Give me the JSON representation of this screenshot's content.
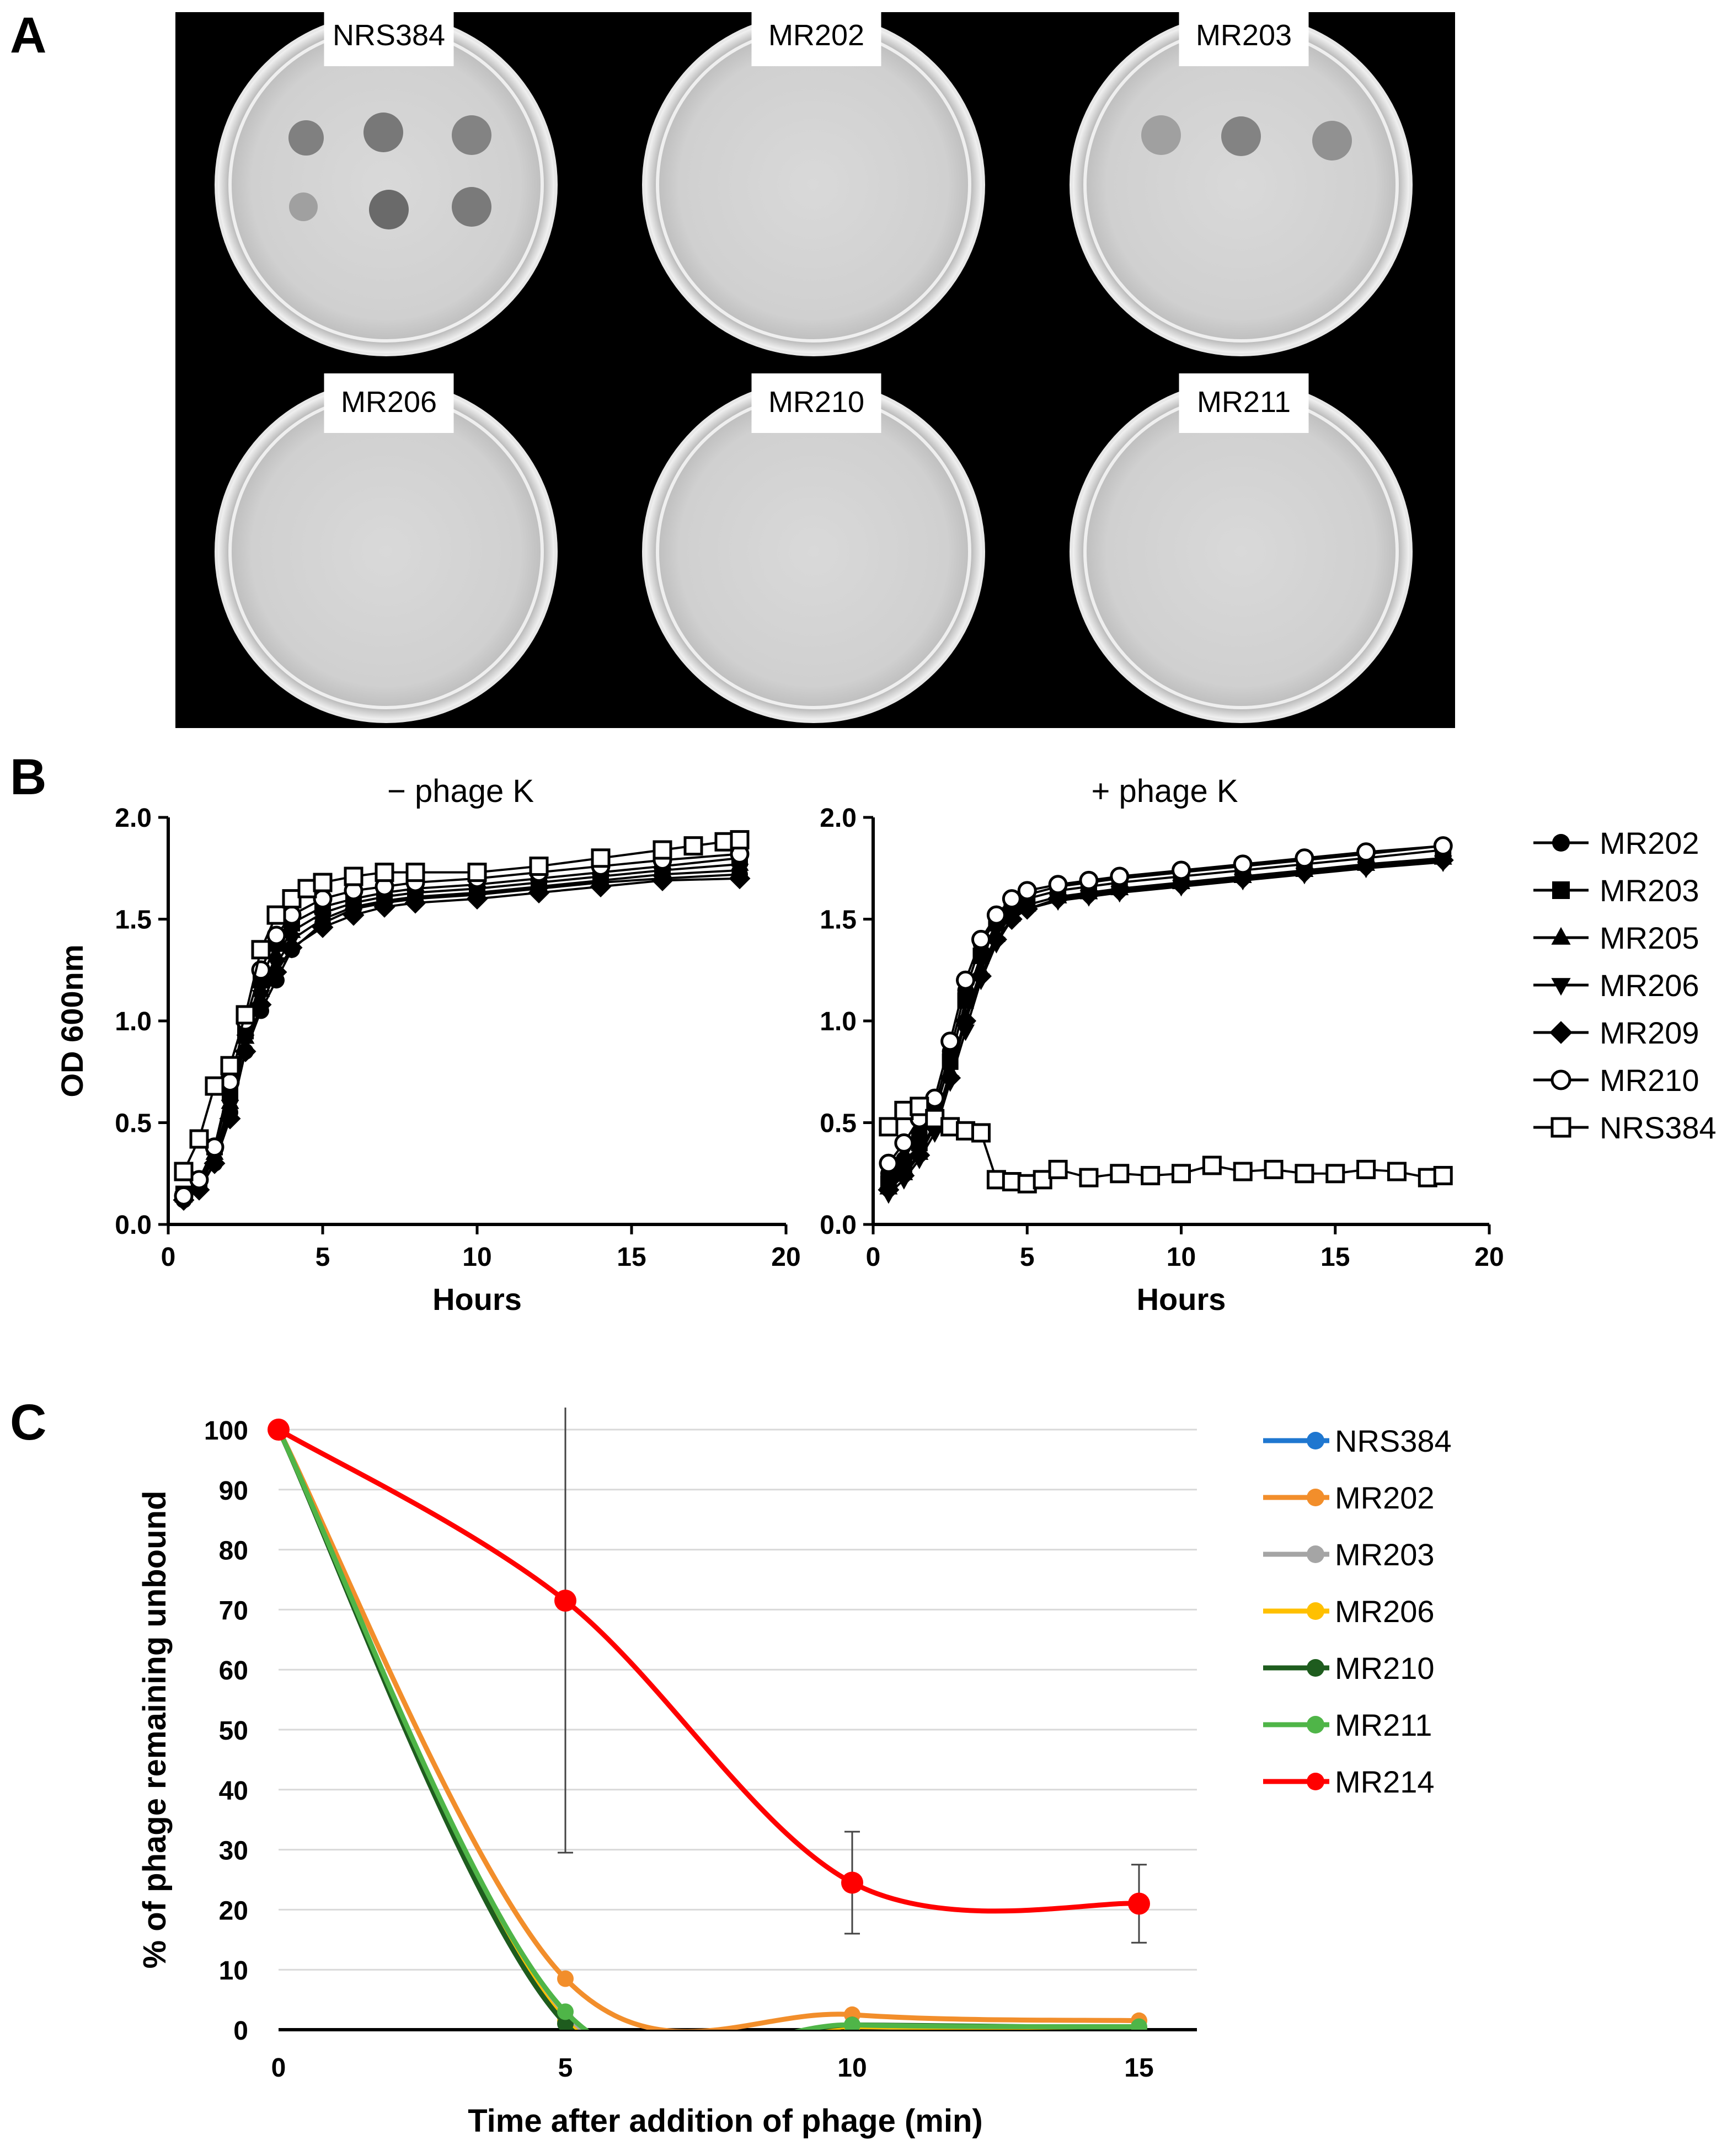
{
  "panel_letters": [
    "A",
    "B",
    "C"
  ],
  "plates": [
    {
      "label": "NRS384",
      "plaques": 6
    },
    {
      "label": "MR202",
      "plaques": 0
    },
    {
      "label": "MR203",
      "plaques": 3
    },
    {
      "label": "MR206",
      "plaques": 0
    },
    {
      "label": "MR210",
      "plaques": 0
    },
    {
      "label": "MR211",
      "plaques": 0
    }
  ],
  "chart_data": [
    {
      "type": "line",
      "panel": "B",
      "title": "− phage K",
      "xlabel": "Hours",
      "ylabel": "OD 600nm",
      "xlim": [
        0,
        20
      ],
      "ylim": [
        0,
        2.0
      ],
      "xticks": [
        "0",
        "5",
        "10",
        "15",
        "20"
      ],
      "yticks": [
        "0.0",
        "0.5",
        "1.0",
        "1.5",
        "2.0"
      ],
      "series": [
        {
          "name": "MR202",
          "marker": "circle",
          "x": [
            0.5,
            1,
            1.5,
            2,
            2.5,
            3,
            3.5,
            4,
            5,
            6,
            7,
            8,
            10,
            12,
            14,
            16,
            18.5
          ],
          "y": [
            0.12,
            0.18,
            0.3,
            0.55,
            0.85,
            1.05,
            1.2,
            1.35,
            1.48,
            1.55,
            1.58,
            1.6,
            1.62,
            1.65,
            1.68,
            1.7,
            1.72
          ]
        },
        {
          "name": "MR203",
          "marker": "square",
          "x": [
            0.5,
            1,
            1.5,
            2,
            2.5,
            3,
            3.5,
            4,
            5,
            6,
            7,
            8,
            10,
            12,
            14,
            16,
            18.5
          ],
          "y": [
            0.15,
            0.22,
            0.38,
            0.65,
            0.95,
            1.2,
            1.38,
            1.48,
            1.56,
            1.6,
            1.63,
            1.65,
            1.67,
            1.7,
            1.73,
            1.76,
            1.8
          ]
        },
        {
          "name": "MR205",
          "marker": "triangle",
          "x": [
            0.5,
            1,
            1.5,
            2,
            2.5,
            3,
            3.5,
            4,
            5,
            6,
            7,
            8,
            10,
            12,
            14,
            16,
            18.5
          ],
          "y": [
            0.14,
            0.2,
            0.35,
            0.6,
            0.92,
            1.15,
            1.32,
            1.44,
            1.53,
            1.58,
            1.61,
            1.63,
            1.65,
            1.68,
            1.71,
            1.74,
            1.77
          ]
        },
        {
          "name": "MR206",
          "marker": "triangle-down",
          "x": [
            0.5,
            1,
            1.5,
            2,
            2.5,
            3,
            3.5,
            4,
            5,
            6,
            7,
            8,
            10,
            12,
            14,
            16,
            18.5
          ],
          "y": [
            0.13,
            0.19,
            0.33,
            0.58,
            0.9,
            1.12,
            1.28,
            1.4,
            1.5,
            1.56,
            1.59,
            1.61,
            1.63,
            1.66,
            1.69,
            1.72,
            1.74
          ]
        },
        {
          "name": "MR209",
          "marker": "diamond",
          "x": [
            0.5,
            1,
            1.5,
            2,
            2.5,
            3,
            3.5,
            4,
            5,
            6,
            7,
            8,
            10,
            12,
            14,
            16,
            18.5
          ],
          "y": [
            0.12,
            0.17,
            0.3,
            0.52,
            0.85,
            1.08,
            1.24,
            1.36,
            1.46,
            1.52,
            1.56,
            1.58,
            1.6,
            1.63,
            1.66,
            1.69,
            1.7
          ]
        },
        {
          "name": "MR210",
          "marker": "circle-open",
          "x": [
            0.5,
            1,
            1.5,
            2,
            2.5,
            3,
            3.5,
            4,
            5,
            6,
            7,
            8,
            10,
            12,
            14,
            16,
            18.5
          ],
          "y": [
            0.14,
            0.22,
            0.38,
            0.7,
            1.0,
            1.25,
            1.42,
            1.52,
            1.6,
            1.64,
            1.66,
            1.68,
            1.7,
            1.73,
            1.76,
            1.79,
            1.82
          ]
        },
        {
          "name": "NRS384",
          "marker": "square-open",
          "x": [
            0.5,
            1,
            1.5,
            2,
            2.5,
            3,
            3.5,
            4,
            4.5,
            5,
            6,
            7,
            8,
            10,
            12,
            14,
            16,
            17,
            18,
            18.5
          ],
          "y": [
            0.26,
            0.42,
            0.68,
            0.78,
            1.03,
            1.35,
            1.52,
            1.6,
            1.65,
            1.68,
            1.71,
            1.73,
            1.73,
            1.73,
            1.76,
            1.8,
            1.84,
            1.86,
            1.88,
            1.89
          ]
        }
      ]
    },
    {
      "type": "line",
      "panel": "B",
      "title": "+ phage K",
      "xlabel": "Hours",
      "ylabel": "",
      "xlim": [
        0,
        20
      ],
      "ylim": [
        0,
        2.0
      ],
      "xticks": [
        "0",
        "5",
        "10",
        "15",
        "20"
      ],
      "yticks": [
        "0.0",
        "0.5",
        "1.0",
        "1.5",
        "2.0"
      ],
      "series": [
        {
          "name": "MR202",
          "marker": "circle",
          "x": [
            0.5,
            1,
            1.5,
            2,
            2.5,
            3,
            3.5,
            4,
            4.5,
            5,
            6,
            7,
            8,
            10,
            12,
            14,
            16,
            18.5
          ],
          "y": [
            0.25,
            0.32,
            0.45,
            0.58,
            0.85,
            1.15,
            1.38,
            1.5,
            1.58,
            1.62,
            1.66,
            1.68,
            1.7,
            1.73,
            1.76,
            1.79,
            1.82,
            1.86
          ]
        },
        {
          "name": "MR203",
          "marker": "square",
          "x": [
            0.5,
            1,
            1.5,
            2,
            2.5,
            3,
            3.5,
            4,
            4.5,
            5,
            6,
            7,
            8,
            10,
            12,
            14,
            16,
            18.5
          ],
          "y": [
            0.2,
            0.28,
            0.4,
            0.55,
            0.8,
            1.1,
            1.32,
            1.48,
            1.56,
            1.6,
            1.64,
            1.66,
            1.68,
            1.71,
            1.74,
            1.77,
            1.8,
            1.84
          ]
        },
        {
          "name": "MR205",
          "marker": "triangle",
          "x": [
            0.5,
            1,
            1.5,
            2,
            2.5,
            3,
            3.5,
            4,
            4.5,
            5,
            6,
            7,
            8,
            10,
            12,
            14,
            16,
            18.5
          ],
          "y": [
            0.18,
            0.25,
            0.35,
            0.5,
            0.75,
            1.02,
            1.25,
            1.42,
            1.52,
            1.57,
            1.61,
            1.63,
            1.65,
            1.68,
            1.71,
            1.74,
            1.77,
            1.8
          ]
        },
        {
          "name": "MR206",
          "marker": "triangle-down",
          "x": [
            0.5,
            1,
            1.5,
            2,
            2.5,
            3,
            3.5,
            4,
            4.5,
            5,
            6,
            7,
            8,
            10,
            12,
            14,
            16,
            18.5
          ],
          "y": [
            0.15,
            0.22,
            0.32,
            0.45,
            0.7,
            0.95,
            1.2,
            1.38,
            1.5,
            1.55,
            1.59,
            1.61,
            1.63,
            1.66,
            1.69,
            1.72,
            1.75,
            1.78
          ]
        },
        {
          "name": "MR209",
          "marker": "diamond",
          "x": [
            0.5,
            1,
            1.5,
            2,
            2.5,
            3,
            3.5,
            4,
            4.5,
            5,
            6,
            7,
            8,
            10,
            12,
            14,
            16,
            18.5
          ],
          "y": [
            0.17,
            0.24,
            0.34,
            0.48,
            0.72,
            1.0,
            1.22,
            1.4,
            1.5,
            1.55,
            1.6,
            1.62,
            1.64,
            1.67,
            1.7,
            1.73,
            1.76,
            1.79
          ]
        },
        {
          "name": "MR210",
          "marker": "circle-open",
          "x": [
            0.5,
            1,
            1.5,
            2,
            2.5,
            3,
            3.5,
            4,
            4.5,
            5,
            6,
            7,
            8,
            10,
            12,
            14,
            16,
            18.5
          ],
          "y": [
            0.3,
            0.4,
            0.52,
            0.62,
            0.9,
            1.2,
            1.4,
            1.52,
            1.6,
            1.64,
            1.67,
            1.69,
            1.71,
            1.74,
            1.77,
            1.8,
            1.83,
            1.86
          ]
        },
        {
          "name": "NRS384",
          "marker": "square-open",
          "x": [
            0.5,
            1,
            1.5,
            2,
            2.5,
            3,
            3.5,
            4,
            4.5,
            5,
            5.5,
            6,
            7,
            8,
            9,
            10,
            11,
            12,
            13,
            14,
            15,
            16,
            17,
            18,
            18.5
          ],
          "y": [
            0.48,
            0.56,
            0.58,
            0.52,
            0.48,
            0.46,
            0.45,
            0.22,
            0.21,
            0.2,
            0.22,
            0.27,
            0.23,
            0.25,
            0.24,
            0.25,
            0.29,
            0.26,
            0.27,
            0.25,
            0.25,
            0.27,
            0.26,
            0.23,
            0.24
          ]
        }
      ]
    },
    {
      "type": "line",
      "panel": "C",
      "title": "",
      "xlabel": "Time after addition of phage (min)",
      "ylabel": "% of phage remaining unbound",
      "xticks": [
        "0",
        "5",
        "10",
        "15"
      ],
      "yticks": [
        "0",
        "10",
        "20",
        "30",
        "40",
        "50",
        "60",
        "70",
        "80",
        "90",
        "100"
      ],
      "xlim": [
        0,
        16
      ],
      "ylim": [
        0,
        100
      ],
      "x": [
        0,
        5,
        10,
        15
      ],
      "series": [
        {
          "name": "NRS384",
          "color": "#1f77d0",
          "values": [
            100,
            1.5,
            0.5,
            0.3
          ]
        },
        {
          "name": "MR202",
          "color": "#f28e2b",
          "values": [
            100,
            8.5,
            2.5,
            1.5
          ]
        },
        {
          "name": "MR203",
          "color": "#a5a5a5",
          "values": [
            100,
            2.0,
            0.5,
            0.3
          ]
        },
        {
          "name": "MR206",
          "color": "#ffc000",
          "values": [
            100,
            1.5,
            0.5,
            0.3
          ]
        },
        {
          "name": "MR210",
          "color": "#1e5c1e",
          "values": [
            100,
            1.0,
            0.8,
            0.3
          ]
        },
        {
          "name": "MR211",
          "color": "#4fb548",
          "values": [
            100,
            3.0,
            0.8,
            0.5
          ]
        },
        {
          "name": "MR214",
          "color": "#ff0000",
          "values": [
            100,
            71.5,
            24.5,
            21.0
          ],
          "error": [
            0,
            42,
            8.5,
            6.5
          ]
        }
      ]
    }
  ]
}
